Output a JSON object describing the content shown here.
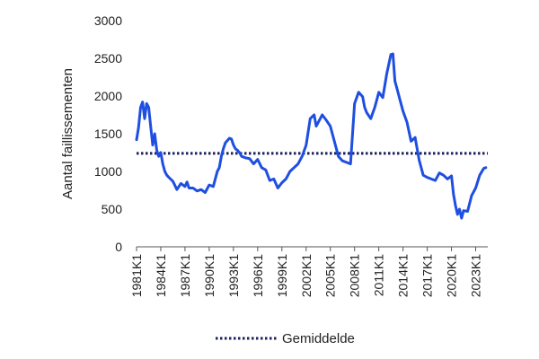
{
  "chart_data": {
    "type": "line",
    "title": "",
    "ylabel": "Aantal faillissementen",
    "xlabel": "",
    "ylim": [
      0,
      3000
    ],
    "yticks": [
      0,
      500,
      1000,
      1500,
      2000,
      2500,
      3000
    ],
    "xlim": [
      1981.0,
      2024.5
    ],
    "xtick_labels": [
      "1981K1",
      "1984K1",
      "1987K1",
      "1990K1",
      "1993K1",
      "1996K1",
      "1999K1",
      "2002K1",
      "2005K1",
      "2008K1",
      "2011K1",
      "2014K1",
      "2017K1",
      "2020K1",
      "2023K1"
    ],
    "grid": false,
    "legend_position": "bottom",
    "series": [
      {
        "name": "",
        "color": "#1f4fe0",
        "x": [
          1981.0,
          1981.25,
          1981.5,
          1981.75,
          1982.0,
          1982.25,
          1982.5,
          1982.75,
          1983.0,
          1983.25,
          1983.5,
          1983.75,
          1984.0,
          1984.25,
          1984.5,
          1984.75,
          1985.0,
          1985.5,
          1986.0,
          1986.5,
          1987.0,
          1987.25,
          1987.5,
          1988.0,
          1988.5,
          1989.0,
          1989.5,
          1990.0,
          1990.5,
          1991.0,
          1991.25,
          1991.5,
          1991.75,
          1992.0,
          1992.5,
          1992.75,
          1993.0,
          1993.25,
          1993.5,
          1993.75,
          1994.0,
          1994.5,
          1995.0,
          1995.5,
          1996.0,
          1996.5,
          1997.0,
          1997.5,
          1998.0,
          1998.5,
          1999.0,
          1999.5,
          2000.0,
          2000.5,
          2001.0,
          2001.5,
          2002.0,
          2002.5,
          2003.0,
          2003.25,
          2003.5,
          2003.75,
          2004.0,
          2004.5,
          2005.0,
          2005.5,
          2006.0,
          2006.5,
          2007.0,
          2007.5,
          2008.0,
          2008.5,
          2009.0,
          2009.25,
          2009.5,
          2010.0,
          2010.5,
          2011.0,
          2011.5,
          2012.0,
          2012.5,
          2012.75,
          2013.0,
          2013.25,
          2013.5,
          2014.0,
          2014.5,
          2015.0,
          2015.5,
          2016.0,
          2016.5,
          2017.0,
          2017.5,
          2018.0,
          2018.5,
          2019.0,
          2019.5,
          2020.0,
          2020.25,
          2020.5,
          2020.75,
          2021.0,
          2021.25,
          2021.5,
          2022.0,
          2022.5,
          2023.0,
          2023.5,
          2024.0,
          2024.25
        ],
        "values": [
          1420,
          1580,
          1850,
          1920,
          1700,
          1900,
          1850,
          1600,
          1350,
          1500,
          1280,
          1200,
          1250,
          1100,
          1000,
          950,
          920,
          870,
          760,
          840,
          800,
          860,
          780,
          780,
          740,
          760,
          720,
          820,
          800,
          1000,
          1050,
          1200,
          1300,
          1380,
          1440,
          1430,
          1350,
          1300,
          1280,
          1250,
          1200,
          1180,
          1170,
          1100,
          1160,
          1050,
          1020,
          880,
          900,
          780,
          850,
          900,
          1000,
          1050,
          1100,
          1200,
          1350,
          1700,
          1750,
          1600,
          1650,
          1700,
          1750,
          1680,
          1600,
          1400,
          1200,
          1140,
          1120,
          1100,
          1900,
          2050,
          1990,
          1850,
          1780,
          1700,
          1850,
          2050,
          1980,
          2300,
          2550,
          2560,
          2200,
          2100,
          2000,
          1800,
          1650,
          1400,
          1450,
          1150,
          950,
          920,
          900,
          880,
          980,
          950,
          900,
          940,
          700,
          550,
          430,
          500,
          380,
          480,
          470,
          680,
          780,
          950,
          1040,
          1050
        ]
      }
    ],
    "reference_line": {
      "label": "Gemiddelde",
      "value": 1240,
      "color": "#1a1f5c",
      "style": "dotted"
    }
  }
}
